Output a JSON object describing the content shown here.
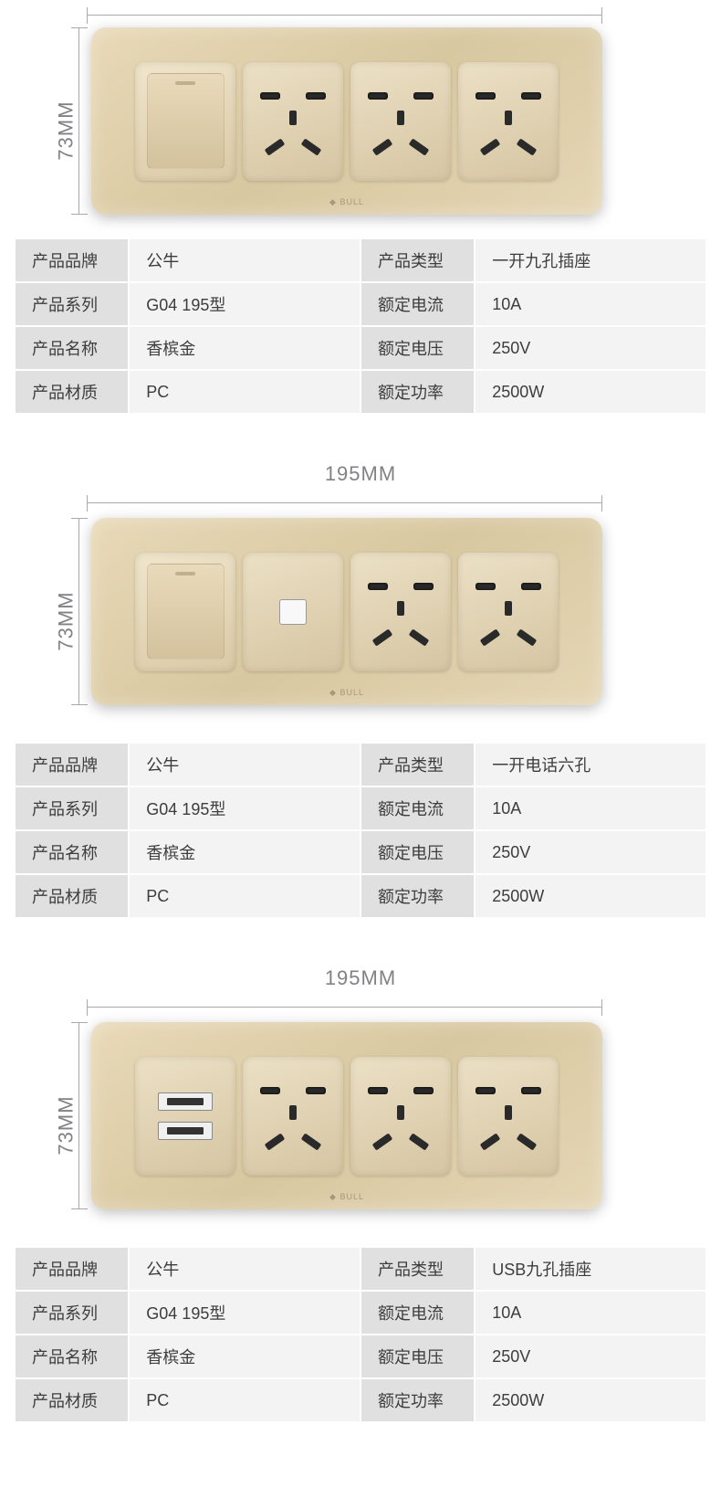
{
  "dimensions": {
    "width_label": "195MM",
    "height_label": "73MM"
  },
  "colors": {
    "panel_gradient_start": "#e8d9b8",
    "panel_gradient_end": "#d8c8a0",
    "label_bg": "#e0e0e1",
    "value_bg": "#f3f3f4",
    "text": "#3d3d3e",
    "dim_text": "#828286"
  },
  "spec_labels": {
    "brand": "产品品牌",
    "type": "产品类型",
    "series": "产品系列",
    "current": "额定电流",
    "name": "产品名称",
    "voltage": "额定电压",
    "material": "产品材质",
    "power": "额定功率"
  },
  "products": [
    {
      "modules": [
        "switch",
        "outlet",
        "outlet",
        "outlet"
      ],
      "show_top_dim": false,
      "specs": {
        "brand": "公牛",
        "type": "一开九孔插座",
        "series": "G04 195型",
        "current": "10A",
        "name": "香槟金",
        "voltage": "250V",
        "material": "PC",
        "power": "2500W"
      }
    },
    {
      "modules": [
        "switch",
        "phone",
        "outlet",
        "outlet"
      ],
      "show_top_dim": true,
      "specs": {
        "brand": "公牛",
        "type": "一开电话六孔",
        "series": "G04 195型",
        "current": "10A",
        "name": "香槟金",
        "voltage": "250V",
        "material": "PC",
        "power": "2500W"
      }
    },
    {
      "modules": [
        "usb",
        "outlet",
        "outlet",
        "outlet"
      ],
      "show_top_dim": true,
      "specs": {
        "brand": "公牛",
        "type": "USB九孔插座",
        "series": "G04 195型",
        "current": "10A",
        "name": "香槟金",
        "voltage": "250V",
        "material": "PC",
        "power": "2500W"
      }
    }
  ]
}
